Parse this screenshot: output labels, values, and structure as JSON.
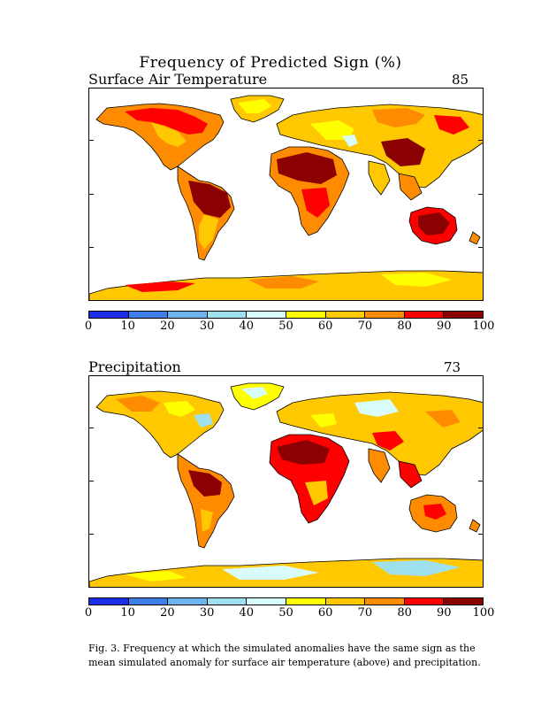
{
  "figure": {
    "title": "Frequency of Predicted Sign (%)",
    "caption": "Fig. 3. Frequency at which the simulated anomalies have the same sign as the mean simulated anomaly for surface air temperature (above) and precipitation."
  },
  "panels": [
    {
      "label": "Surface Air Temperature",
      "score": "85"
    },
    {
      "label": "Precipitation",
      "score": "73"
    }
  ],
  "colorbar": {
    "ticks": [
      "0",
      "10",
      "20",
      "30",
      "40",
      "50",
      "60",
      "70",
      "80",
      "90",
      "100"
    ],
    "colors": [
      "#1e2ee8",
      "#3d7ee8",
      "#6fb4ef",
      "#9fe0ef",
      "#d8fbfb",
      "#ffff00",
      "#ffc800",
      "#ff8c00",
      "#ff0000",
      "#8b0000"
    ]
  }
}
